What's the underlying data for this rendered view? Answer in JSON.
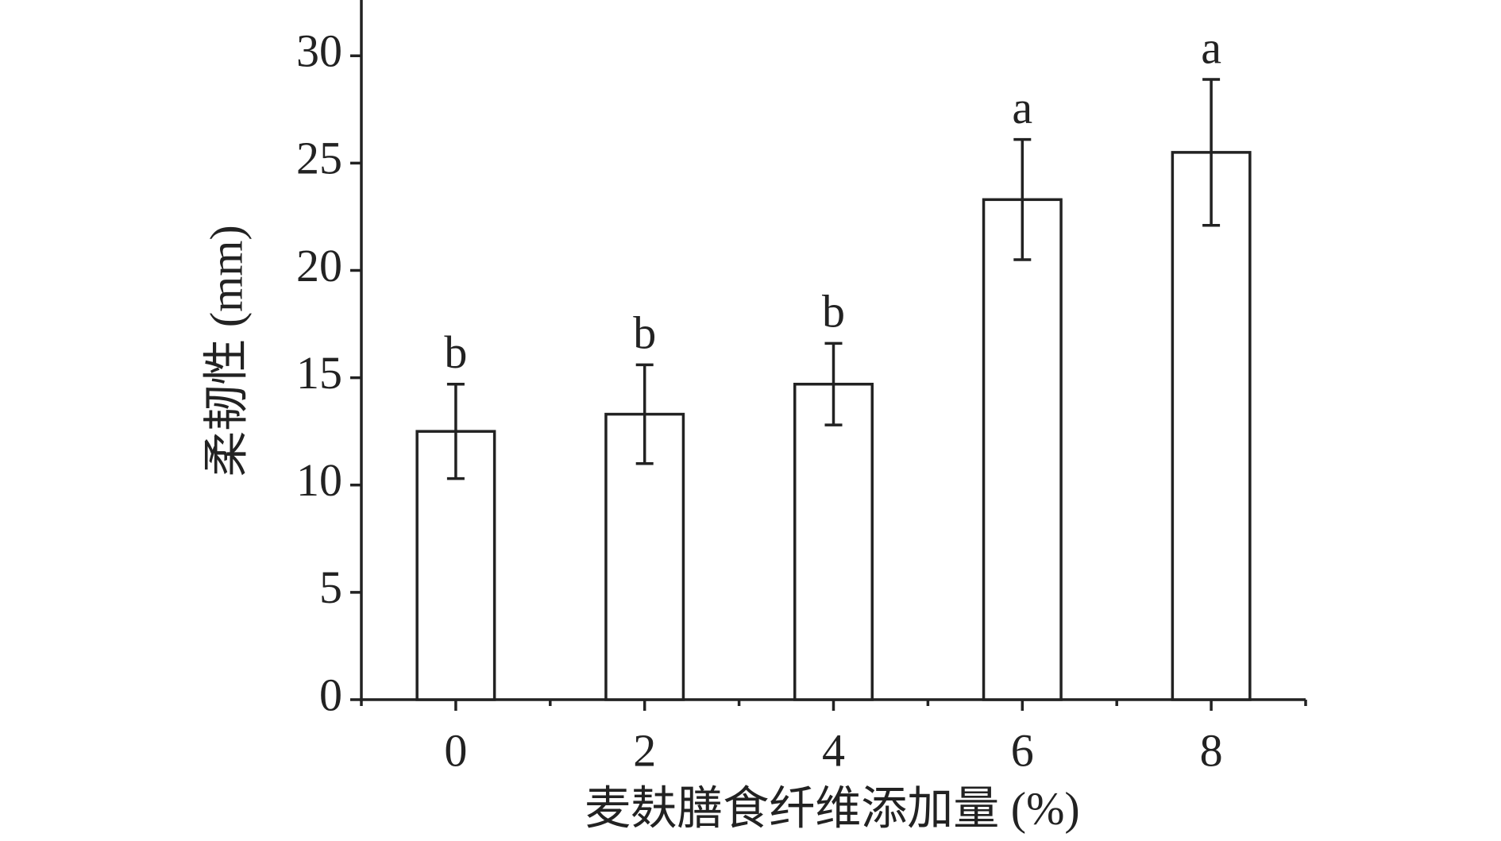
{
  "chart_data": {
    "type": "bar",
    "xlabel": "麦麸膳食纤维添加量 (%)",
    "ylabel": "柔韧性 (mm)",
    "categories": [
      "0",
      "2",
      "4",
      "6",
      "8"
    ],
    "values": [
      12.5,
      13.3,
      14.7,
      23.3,
      25.5
    ],
    "errors": [
      2.2,
      2.3,
      1.9,
      2.8,
      3.4
    ],
    "annotations": [
      "b",
      "b",
      "b",
      "a",
      "a"
    ],
    "color": "#ffffff",
    "ylim": [
      0,
      32.6
    ],
    "yticks": [
      0,
      5,
      10,
      15,
      20,
      25,
      30
    ],
    "grid": false
  }
}
